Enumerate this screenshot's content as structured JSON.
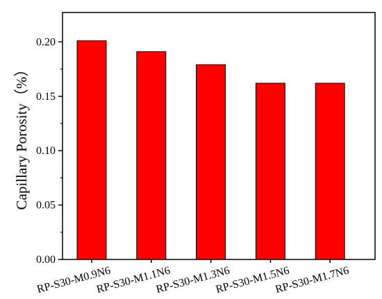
{
  "chart_data": {
    "type": "bar",
    "y_label": "Capillary Porosity（%）",
    "categories": [
      "RP-S30-M0.9N6",
      "RP-S30-M1.1N6",
      "RP-S30-M1.3N6",
      "RP-S30-M1.5N6",
      "RP-S30-M1.7N6"
    ],
    "values": [
      0.201,
      0.191,
      0.179,
      0.162,
      0.162
    ],
    "color": "#ff0000",
    "ylim": [
      0,
      0.227
    ],
    "yticks": [
      {
        "value": 0,
        "label": "0.00"
      },
      0.05,
      {
        "value": 0.1,
        "label": "0.10"
      },
      0.15,
      {
        "value": 0.2,
        "label": "0.20"
      }
    ]
  }
}
